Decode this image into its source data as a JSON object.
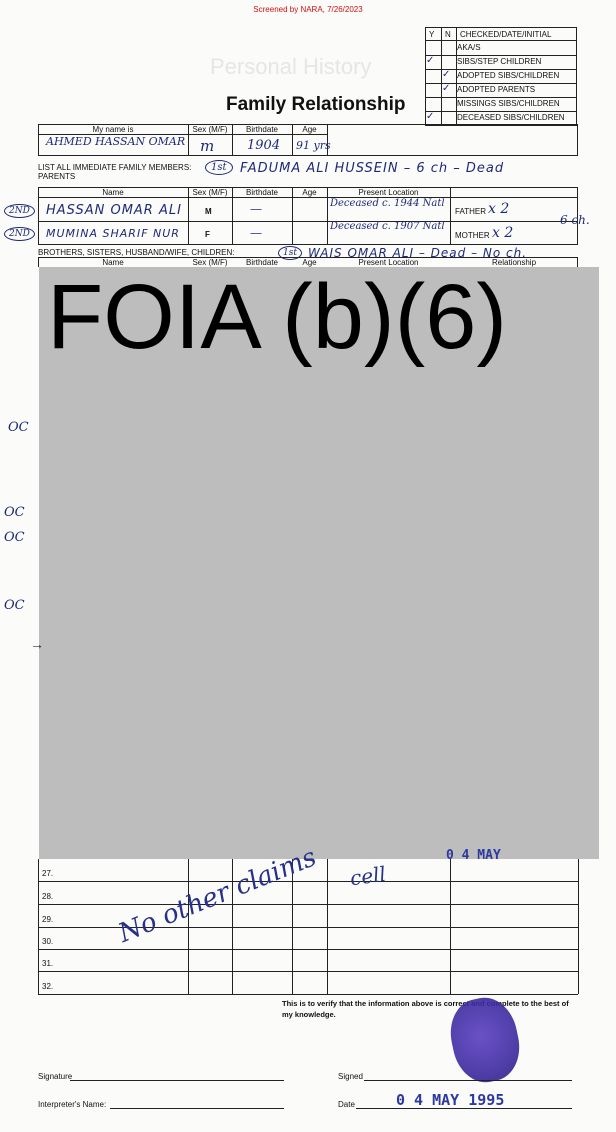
{
  "stamp": "Screened by NARA, 7/26/2023",
  "form_title": "Family Relationship",
  "bg_title": "Personal History",
  "checklist": {
    "col_y": "Y",
    "col_n": "N",
    "header": "CHECKED/DATE/INITIAL",
    "items": [
      "AKA/S",
      "SIBS/STEP CHILDREN",
      "ADOPTED SIBS/CHILDREN",
      "ADOPTED PARENTS",
      "MISSINGS SIBS/CHILDREN",
      "DECEASED SIBS/CHILDREN"
    ]
  },
  "applicant": {
    "headers": [
      "My name is",
      "Sex (M/F)",
      "Birthdate",
      "Age"
    ],
    "name": "AHMED HASSAN OMAR",
    "sex": "m",
    "birthdate": "1904",
    "age": "91 yrs"
  },
  "list_label": "LIST ALL IMMEDIATE FAMILY MEMBERS:",
  "parents_label": "PARENTS",
  "immediate_note": "FADUMA ALI HUSSEIN – 6 ch – Dead",
  "first_mark": "1st",
  "table_headers": [
    "Name",
    "Sex (M/F)",
    "Birthdate",
    "Age",
    "Present Location",
    "Relationship"
  ],
  "parents": [
    {
      "mark": "2ND",
      "name": "HASSAN OMAR ALI",
      "sex": "M",
      "birthdate": "—",
      "location": "Deceased c. 1944 Natl",
      "relationship_label": "FATHER",
      "relationship_note": "x 2"
    },
    {
      "mark": "2ND",
      "name": "MUMINA SHARIF NUR",
      "sex": "F",
      "birthdate": "—",
      "location": "Deceased c. 1907 Natl",
      "relationship_label": "MOTHER",
      "relationship_note": "x 2"
    }
  ],
  "sixch_note": "6 ch.",
  "siblings_label": "BROTHERS, SISTERS, HUSBAND/WIFE, CHILDREN:",
  "siblings_note": "WAIS OMAR ALI – Dead – No ch.",
  "redaction_text": "FOIA (b)(6)",
  "left_margin_marks": [
    "OC",
    "OC",
    "OC",
    "OC"
  ],
  "rows": [
    "27.",
    "28.",
    "29.",
    "30.",
    "31.",
    "32."
  ],
  "no_other_claims": "No other claims",
  "cell_note": "cell",
  "stamp_partial": "0 4 MAY",
  "certification": "This is to verify that the information above is correct and complete to the best of my knowledge.",
  "signature_label": "Signature",
  "signed_label": "Signed",
  "interpreter_label": "Interpreter's Name:",
  "date_label": "Date",
  "date_value": "0 4 MAY 1995"
}
